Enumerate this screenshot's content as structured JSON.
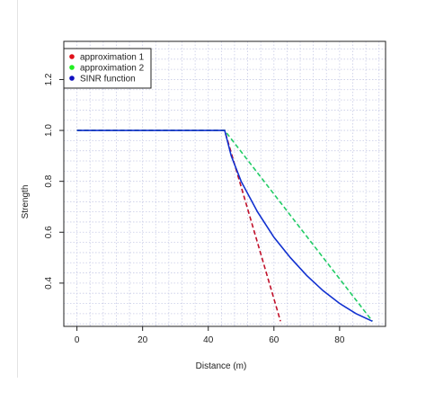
{
  "chart_data": {
    "type": "line",
    "xlabel": "Distance (m)",
    "ylabel": "Strength",
    "xlim": [
      -4,
      94
    ],
    "ylim": [
      0.23,
      1.35
    ],
    "xticks": [
      0,
      20,
      40,
      60,
      80
    ],
    "yticks": [
      0.4,
      0.6,
      0.8,
      1.0,
      1.2
    ],
    "ytick_labels": [
      "0.4",
      "0.6",
      "0.8",
      "1.0",
      "1.2"
    ],
    "grid": true,
    "legend_position": "top-left",
    "series": [
      {
        "name": "approximation 1",
        "color": "#c0102a",
        "marker_color": "#e0101a",
        "style": "dashed",
        "x": [
          0,
          45,
          62
        ],
        "y": [
          1.0,
          1.0,
          0.25
        ]
      },
      {
        "name": "approximation 2",
        "color": "#22cc66",
        "marker_color": "#22ee22",
        "style": "dashed",
        "x": [
          0,
          45,
          90
        ],
        "y": [
          1.0,
          1.0,
          0.25
        ]
      },
      {
        "name": "SINR function",
        "color": "#1030d0",
        "marker_color": "#1010c0",
        "style": "solid",
        "x": [
          0,
          45,
          47,
          50,
          55,
          60,
          65,
          70,
          75,
          80,
          85,
          90
        ],
        "y": [
          1.0,
          1.0,
          0.9,
          0.8,
          0.68,
          0.58,
          0.5,
          0.43,
          0.37,
          0.32,
          0.28,
          0.25
        ]
      }
    ]
  }
}
